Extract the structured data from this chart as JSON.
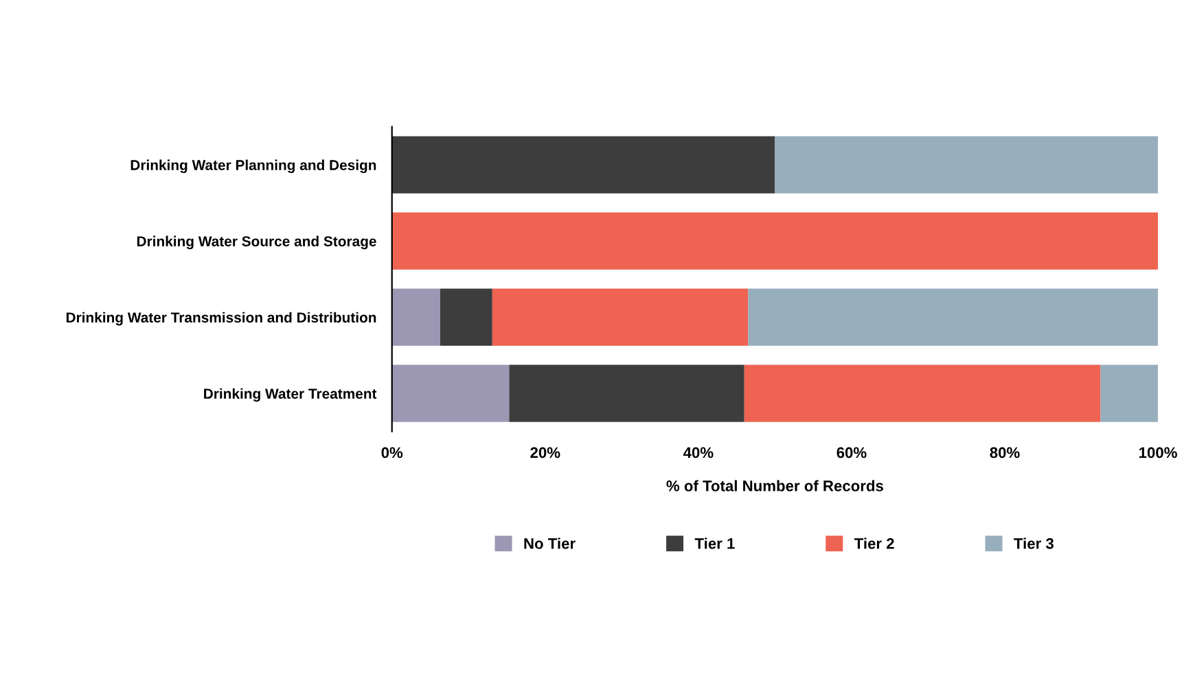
{
  "chart_data": {
    "type": "bar",
    "orientation": "horizontal",
    "stacked": true,
    "categories": [
      "Drinking Water Planning and Design",
      "Drinking Water Source and Storage",
      "Drinking Water Transmission and Distribution",
      "Drinking Water Treatment"
    ],
    "series": [
      {
        "name": "No Tier",
        "color": "#9c97b3",
        "values": [
          0,
          0,
          6.3,
          15.3
        ]
      },
      {
        "name": "Tier 1",
        "color": "#3d3d3d",
        "values": [
          50,
          0,
          6.8,
          30.7
        ]
      },
      {
        "name": "Tier 2",
        "color": "#ee6352",
        "values": [
          0,
          100,
          33.4,
          46.5
        ]
      },
      {
        "name": "Tier 3",
        "color": "#97aebd",
        "values": [
          50,
          0,
          53.5,
          7.5
        ]
      }
    ],
    "xlim": [
      0,
      100
    ],
    "xticks": [
      {
        "value": 0,
        "label": "0%"
      },
      {
        "value": 20,
        "label": "20%"
      },
      {
        "value": 40,
        "label": "40%"
      },
      {
        "value": 60,
        "label": "60%"
      },
      {
        "value": 80,
        "label": "80%"
      },
      {
        "value": 100,
        "label": "100%"
      }
    ],
    "xlabel": "% of Total Number of Records",
    "grid": false,
    "legend": "bottom"
  }
}
